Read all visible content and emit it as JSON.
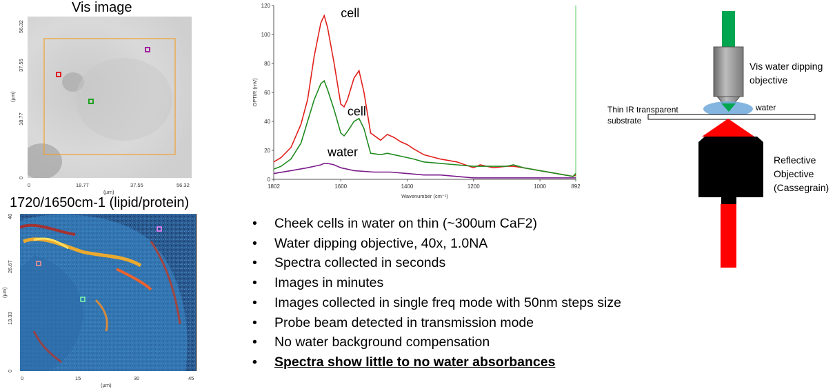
{
  "vis_panel": {
    "title": "Vis image",
    "y_ticks": [
      "56.32",
      "37.55",
      "18.77",
      "0"
    ],
    "x_ticks": [
      "0",
      "18.77",
      "37.55",
      "56.32"
    ],
    "unit": "(µm)"
  },
  "ratio_panel": {
    "title": "1720/1650cm-1 (lipid/protein)",
    "y_ticks": [
      "40",
      "26.67",
      "13.33",
      "0"
    ],
    "x_ticks": [
      "0",
      "15",
      "30",
      "45"
    ],
    "unit": "(µm)"
  },
  "chart_data": {
    "type": "line",
    "xlabel": "Wavenumber (cm⁻¹)",
    "ylabel": "OPTIR (mV)",
    "xlim": [
      1802,
      892
    ],
    "ylim": [
      0,
      120
    ],
    "x_ticks": [
      "1802",
      "1600",
      "1400",
      "1200",
      "1000",
      "892"
    ],
    "y_ticks": [
      "0",
      "20",
      "40",
      "60",
      "80",
      "100",
      "120"
    ],
    "series": [
      {
        "name": "cell",
        "color": "#e0201c",
        "x": [
          1802,
          1780,
          1750,
          1720,
          1700,
          1680,
          1660,
          1650,
          1640,
          1620,
          1600,
          1590,
          1580,
          1560,
          1545,
          1530,
          1510,
          1480,
          1460,
          1440,
          1420,
          1400,
          1380,
          1350,
          1300,
          1250,
          1200,
          1180,
          1160,
          1140,
          1100,
          1080,
          1050,
          1000,
          950,
          900,
          892
        ],
        "y": [
          12,
          15,
          22,
          38,
          55,
          85,
          108,
          113,
          105,
          80,
          52,
          50,
          55,
          70,
          75,
          60,
          32,
          27,
          31,
          29,
          26,
          24,
          21,
          17,
          14,
          12,
          8,
          10,
          9,
          8,
          9,
          9,
          8,
          6,
          4,
          2,
          3
        ]
      },
      {
        "name": "cell",
        "color": "#1f8a1f",
        "x": [
          1802,
          1780,
          1750,
          1720,
          1700,
          1680,
          1660,
          1650,
          1640,
          1620,
          1600,
          1590,
          1580,
          1560,
          1545,
          1530,
          1510,
          1480,
          1460,
          1440,
          1420,
          1400,
          1380,
          1350,
          1300,
          1250,
          1200,
          1180,
          1160,
          1140,
          1100,
          1080,
          1050,
          1000,
          950,
          900,
          892
        ],
        "y": [
          7,
          9,
          14,
          25,
          40,
          55,
          66,
          68,
          62,
          48,
          32,
          30,
          33,
          40,
          42,
          35,
          18,
          17,
          18,
          17,
          16,
          15,
          14,
          12,
          11,
          10,
          9,
          9,
          9,
          9,
          9,
          10,
          8,
          6,
          4,
          2,
          4
        ]
      },
      {
        "name": "water",
        "color": "#7a1a8a",
        "x": [
          1802,
          1750,
          1700,
          1680,
          1660,
          1650,
          1640,
          1620,
          1600,
          1560,
          1500,
          1450,
          1400,
          1350,
          1300,
          1250,
          1200,
          1150,
          1100,
          1050,
          1000,
          950,
          900,
          892
        ],
        "y": [
          4,
          6,
          8,
          9,
          10,
          11,
          11,
          10,
          8,
          6,
          5,
          5,
          4,
          3,
          3,
          2,
          1,
          1,
          1,
          1,
          1,
          1,
          1,
          1
        ]
      }
    ],
    "annotations": [
      "cell",
      "cell",
      "water"
    ]
  },
  "bullets": [
    "Cheek cells in water on thin (~300um CaF2)",
    "Water dipping objective, 40x, 1.0NA",
    "Spectra collected in seconds",
    "Images in minutes",
    "Images collected in single freq mode with 50nm steps size",
    "Probe beam detected in transmission mode",
    "No water background compensation",
    "Spectra show little to no water absorbances"
  ],
  "diagram": {
    "objective_label": "Vis water dipping objective",
    "objective_label_line1": "Vis water dipping",
    "objective_label_line2": "objective",
    "water_label": "water",
    "substrate_label_line1": "Thin IR transparent",
    "substrate_label_line2": "substrate",
    "reflective_line1": "Reflective",
    "reflective_line2": "Objective",
    "reflective_line3": "(Cassegrain)",
    "colors": {
      "green": "#00a550",
      "red": "#ff0000",
      "blue": "#5aa0d8"
    }
  }
}
